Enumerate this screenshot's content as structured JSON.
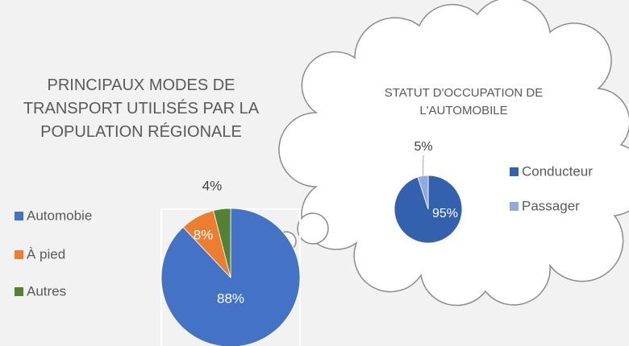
{
  "chart_data": [
    {
      "type": "pie",
      "title": "PRINCIPAUX MODES DE TRANSPORT UTILISÉS PAR LA POPULATION RÉGIONALE",
      "categories": [
        "Automobie",
        "À pied",
        "Autres"
      ],
      "values": [
        88,
        8,
        4
      ],
      "value_labels": [
        "88%",
        "8%",
        "4%"
      ],
      "colors": [
        "#4472c4",
        "#ed7d31",
        "#548235"
      ]
    },
    {
      "type": "pie",
      "title": "STATUT D'OCCUPATION DE L'AUTOMOBILE",
      "categories": [
        "Conducteur",
        "Passager"
      ],
      "values": [
        95,
        5
      ],
      "value_labels": [
        "95%",
        "5%"
      ],
      "colors": [
        "#3461ad",
        "#8faadc"
      ]
    }
  ]
}
